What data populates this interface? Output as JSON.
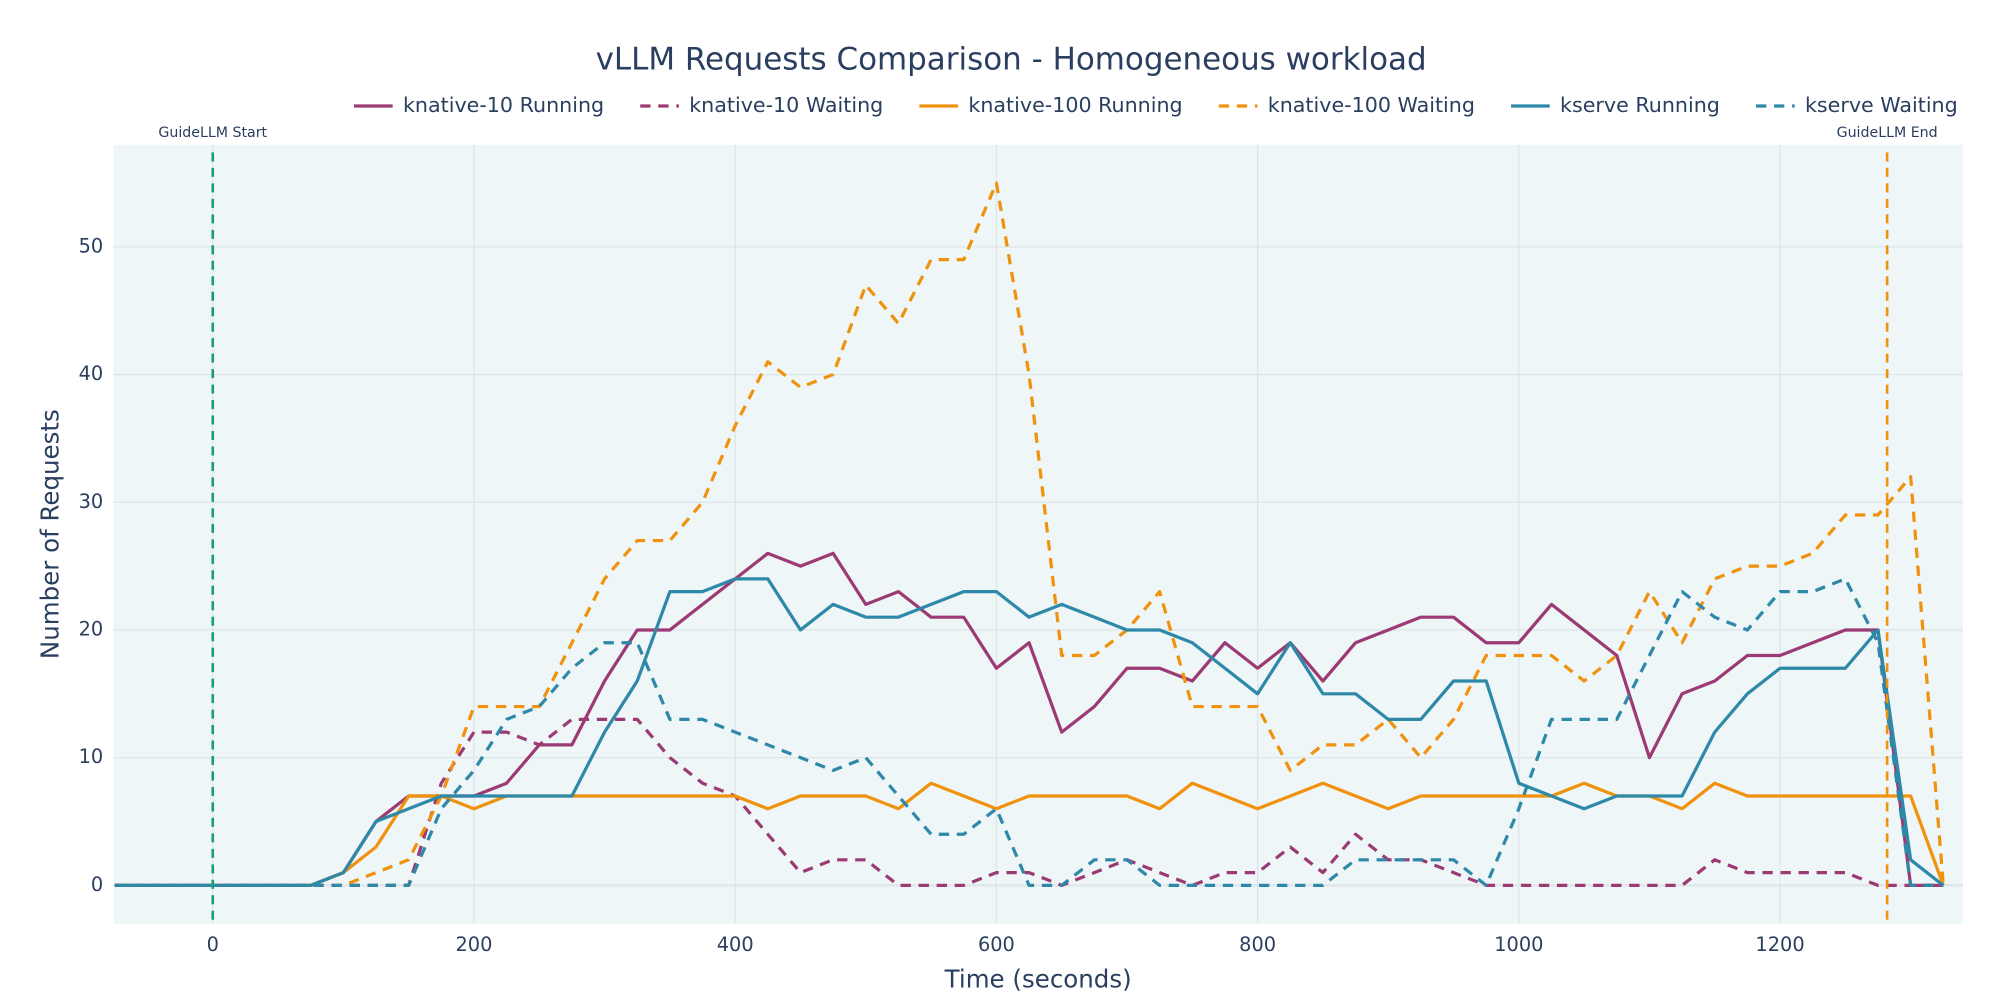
{
  "chart_data": {
    "type": "line",
    "title": "vLLM Requests Comparison - Homogeneous workload",
    "x_label": "Time (seconds)",
    "y_label": "Number of Requests",
    "xlim": [
      -76,
      1340
    ],
    "ylim": [
      -3,
      58
    ],
    "xticks": [
      0,
      200,
      400,
      600,
      800,
      1000,
      1200
    ],
    "yticks": [
      0,
      10,
      20,
      30,
      40,
      50
    ],
    "grid": true,
    "legend": "top-right",
    "x": [
      -75,
      -50,
      -25,
      0,
      25,
      50,
      75,
      100,
      125,
      150,
      175,
      200,
      225,
      250,
      275,
      300,
      325,
      350,
      375,
      400,
      425,
      450,
      475,
      500,
      525,
      550,
      575,
      600,
      625,
      650,
      675,
      700,
      725,
      750,
      775,
      800,
      825,
      850,
      875,
      900,
      925,
      950,
      975,
      1000,
      1025,
      1050,
      1075,
      1100,
      1125,
      1150,
      1175,
      1200,
      1225,
      1250,
      1275,
      1300,
      1325
    ],
    "series": [
      {
        "name": "knative-10 Running",
        "color": "#9c3a74",
        "dash": false,
        "values": [
          0,
          0,
          0,
          0,
          0,
          0,
          0,
          1,
          5,
          7,
          7,
          7,
          8,
          11,
          11,
          16,
          20,
          20,
          22,
          24,
          26,
          25,
          26,
          22,
          23,
          21,
          21,
          17,
          19,
          12,
          14,
          17,
          17,
          16,
          19,
          17,
          19,
          16,
          19,
          20,
          21,
          21,
          19,
          19,
          22,
          20,
          18,
          10,
          15,
          16,
          18,
          18,
          19,
          20,
          20,
          0,
          0
        ]
      },
      {
        "name": "knative-10 Waiting",
        "color": "#9c3a74",
        "dash": true,
        "values": [
          0,
          0,
          0,
          0,
          0,
          0,
          0,
          0,
          0,
          0,
          8,
          12,
          12,
          11,
          13,
          13,
          13,
          10,
          8,
          7,
          4,
          1,
          2,
          2,
          0,
          0,
          0,
          1,
          1,
          0,
          1,
          2,
          1,
          0,
          1,
          1,
          3,
          1,
          4,
          2,
          2,
          1,
          0,
          0,
          0,
          0,
          0,
          0,
          0,
          2,
          1,
          1,
          1,
          1,
          0,
          0,
          0
        ]
      },
      {
        "name": "knative-100 Running",
        "color": "#f0920e",
        "dash": false,
        "values": [
          0,
          0,
          0,
          0,
          0,
          0,
          0,
          1,
          3,
          7,
          7,
          6,
          7,
          7,
          7,
          7,
          7,
          7,
          7,
          7,
          6,
          7,
          7,
          7,
          6,
          8,
          7,
          6,
          7,
          7,
          7,
          7,
          6,
          8,
          7,
          6,
          7,
          8,
          7,
          6,
          7,
          7,
          7,
          7,
          7,
          8,
          7,
          7,
          6,
          8,
          7,
          7,
          7,
          7,
          7,
          7,
          0
        ]
      },
      {
        "name": "knative-100 Waiting",
        "color": "#f0920e",
        "dash": true,
        "values": [
          0,
          0,
          0,
          0,
          0,
          0,
          0,
          0,
          1,
          2,
          7,
          14,
          14,
          14,
          19,
          24,
          27,
          27,
          30,
          36,
          41,
          39,
          40,
          47,
          44,
          49,
          49,
          55,
          40,
          18,
          18,
          20,
          23,
          14,
          14,
          14,
          9,
          11,
          11,
          13,
          10,
          13,
          18,
          18,
          18,
          16,
          18,
          23,
          19,
          24,
          25,
          25,
          26,
          29,
          29,
          32,
          0
        ]
      },
      {
        "name": "kserve Running",
        "color": "#2e88a8",
        "dash": false,
        "values": [
          0,
          0,
          0,
          0,
          0,
          0,
          0,
          1,
          5,
          6,
          7,
          7,
          7,
          7,
          7,
          12,
          16,
          23,
          23,
          24,
          24,
          20,
          22,
          21,
          21,
          22,
          23,
          23,
          21,
          22,
          21,
          20,
          20,
          19,
          17,
          15,
          19,
          15,
          15,
          13,
          13,
          16,
          16,
          8,
          7,
          6,
          7,
          7,
          7,
          12,
          15,
          17,
          17,
          17,
          20,
          2,
          0
        ]
      },
      {
        "name": "kserve Waiting",
        "color": "#2e88a8",
        "dash": true,
        "values": [
          0,
          0,
          0,
          0,
          0,
          0,
          0,
          0,
          0,
          0,
          6,
          9,
          13,
          14,
          17,
          19,
          19,
          13,
          13,
          12,
          11,
          10,
          9,
          10,
          7,
          4,
          4,
          6,
          0,
          0,
          2,
          2,
          0,
          0,
          0,
          0,
          0,
          0,
          2,
          2,
          2,
          2,
          0,
          6,
          13,
          13,
          13,
          18,
          23,
          21,
          20,
          23,
          23,
          24,
          19,
          0,
          0
        ]
      }
    ],
    "vlines": [
      {
        "x": 0,
        "label": "GuideLLM Start",
        "color": "#1a9e6e"
      },
      {
        "x": 1282,
        "label": "GuideLLM End",
        "color": "#f0920e"
      }
    ]
  }
}
